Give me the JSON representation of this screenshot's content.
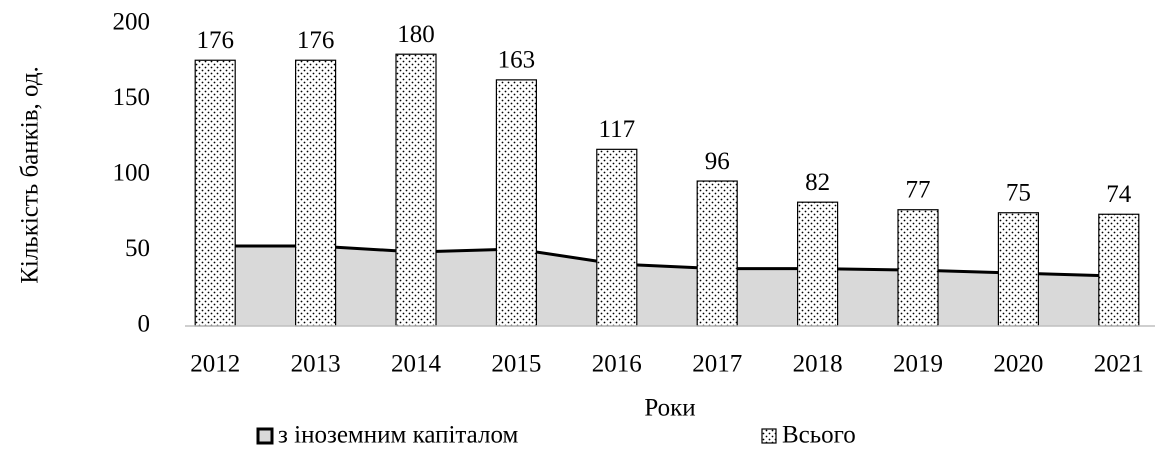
{
  "chart_data": {
    "type": "combo",
    "x_label": "Роки",
    "y_label": "Кількість банків, од.",
    "categories": [
      "2012",
      "2013",
      "2014",
      "2015",
      "2016",
      "2017",
      "2018",
      "2019",
      "2020",
      "2021"
    ],
    "series": [
      {
        "name": "з іноземним капіталом",
        "type": "area",
        "color": "#d9d9d9",
        "values": [
          53,
          53,
          49,
          51,
          41,
          38,
          38,
          37,
          35,
          33
        ]
      },
      {
        "name": "Всього",
        "type": "bar",
        "color": "#ffffff",
        "values": [
          176,
          176,
          180,
          163,
          117,
          96,
          82,
          77,
          75,
          74
        ]
      }
    ],
    "ylim": [
      0,
      200
    ],
    "yticks": [
      0,
      50,
      100,
      150,
      200
    ],
    "legend": "bottom"
  }
}
